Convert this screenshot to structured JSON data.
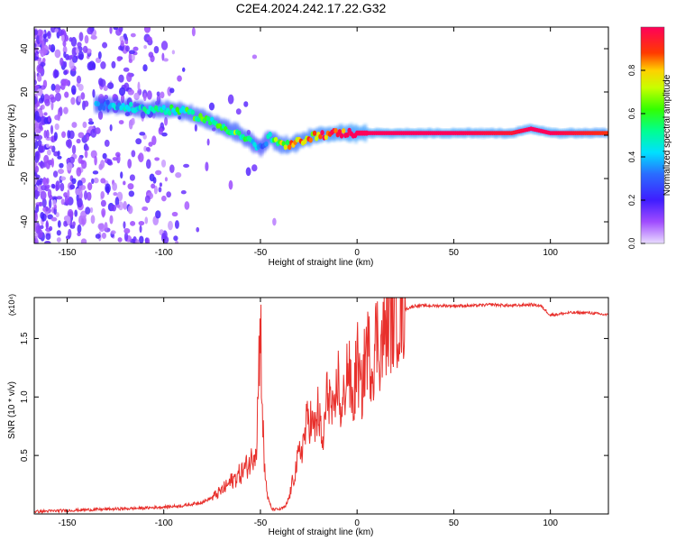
{
  "title": "C2E4.2024.242.17.22.G32",
  "colors": {
    "snr_line": "#e8302c",
    "axis": "#000000",
    "background": "#ffffff",
    "spectrogram_low": "#7a2bff",
    "spectrogram_high": "#ff0000"
  },
  "chart_data": [
    {
      "type": "heatmap",
      "xlabel": "Height of straight line (km)",
      "ylabel": "Frequency (Hz)",
      "xlim": [
        -167,
        130
      ],
      "ylim": [
        -50,
        50
      ],
      "xticks": [
        -150,
        -100,
        -50,
        0,
        50,
        100
      ],
      "xtick_labels": [
        "-150",
        "-100",
        "-50",
        "0",
        "50",
        "100"
      ],
      "yticks": [
        -40,
        -20,
        0,
        20,
        40
      ],
      "ytick_labels": [
        "-40",
        "-20",
        "0",
        "20",
        "40"
      ],
      "colorbar": {
        "label": "Normalized spectral amplitude",
        "range": [
          0,
          1
        ],
        "ticks": [
          0.0,
          0.2,
          0.4,
          0.6,
          0.8
        ],
        "tick_labels": [
          "0.0",
          "0.2",
          "0.4",
          "0.6",
          "0.8"
        ]
      },
      "ridge": {
        "x": [
          -130,
          -120,
          -110,
          -100,
          -90,
          -80,
          -70,
          -62,
          -55,
          -50,
          -45,
          -40,
          -35,
          -30,
          -25,
          -20,
          -10,
          0,
          10,
          50,
          80,
          90,
          100,
          130
        ],
        "frequency": [
          14,
          13,
          12,
          12,
          11,
          8,
          4,
          1,
          -3,
          -6,
          -1,
          -4,
          -5,
          -3,
          -1,
          0,
          1,
          1,
          1,
          1,
          1,
          3,
          1,
          1
        ],
        "amplitude": [
          0.35,
          0.45,
          0.45,
          0.5,
          0.55,
          0.6,
          0.55,
          0.6,
          0.5,
          0.3,
          0.55,
          0.7,
          0.75,
          0.8,
          0.85,
          0.9,
          0.95,
          1.0,
          1.0,
          1.0,
          0.95,
          1.0,
          1.0,
          0.9
        ]
      }
    },
    {
      "type": "line",
      "xlabel": "Height of straight line (km)",
      "ylabel": "SNR (10 * v/v)",
      "y_multiplier": "(x10⁴)",
      "xlim": [
        -167,
        130
      ],
      "ylim": [
        0,
        1.85
      ],
      "xticks": [
        -150,
        -100,
        -50,
        0,
        50,
        100
      ],
      "xtick_labels": [
        "-150",
        "-100",
        "-50",
        "0",
        "50",
        "100"
      ],
      "yticks": [
        0.5,
        1.0,
        1.5
      ],
      "ytick_labels": [
        "0.5",
        "1.0",
        "1.5"
      ],
      "series": [
        {
          "x": [
            -167,
            -150,
            -130,
            -110,
            -100,
            -90,
            -80,
            -75,
            -70,
            -65,
            -60,
            -55,
            -52,
            -50,
            -49,
            -48,
            -46,
            -44,
            -40,
            -37,
            -35,
            -33,
            -30,
            -28,
            -25,
            -22,
            -20,
            -18,
            -15,
            -12,
            -10,
            -8,
            -5,
            -2,
            0,
            2,
            5,
            8,
            10,
            12,
            15,
            20,
            25,
            30,
            40,
            50,
            60,
            70,
            80,
            90,
            95,
            100,
            110,
            120,
            130
          ],
          "values": [
            0.02,
            0.03,
            0.04,
            0.05,
            0.06,
            0.07,
            0.1,
            0.14,
            0.2,
            0.28,
            0.35,
            0.45,
            0.6,
            1.72,
            0.9,
            0.4,
            0.12,
            0.04,
            0.04,
            0.06,
            0.15,
            0.3,
            0.5,
            0.6,
            0.85,
            0.7,
            0.9,
            0.55,
            1.1,
            0.75,
            1.2,
            0.8,
            1.3,
            0.9,
            1.35,
            1.0,
            1.45,
            1.25,
            1.55,
            1.4,
            1.6,
            1.7,
            1.75,
            1.78,
            1.78,
            1.78,
            1.78,
            1.79,
            1.78,
            1.79,
            1.78,
            1.7,
            1.72,
            1.72,
            1.7
          ]
        }
      ]
    }
  ]
}
